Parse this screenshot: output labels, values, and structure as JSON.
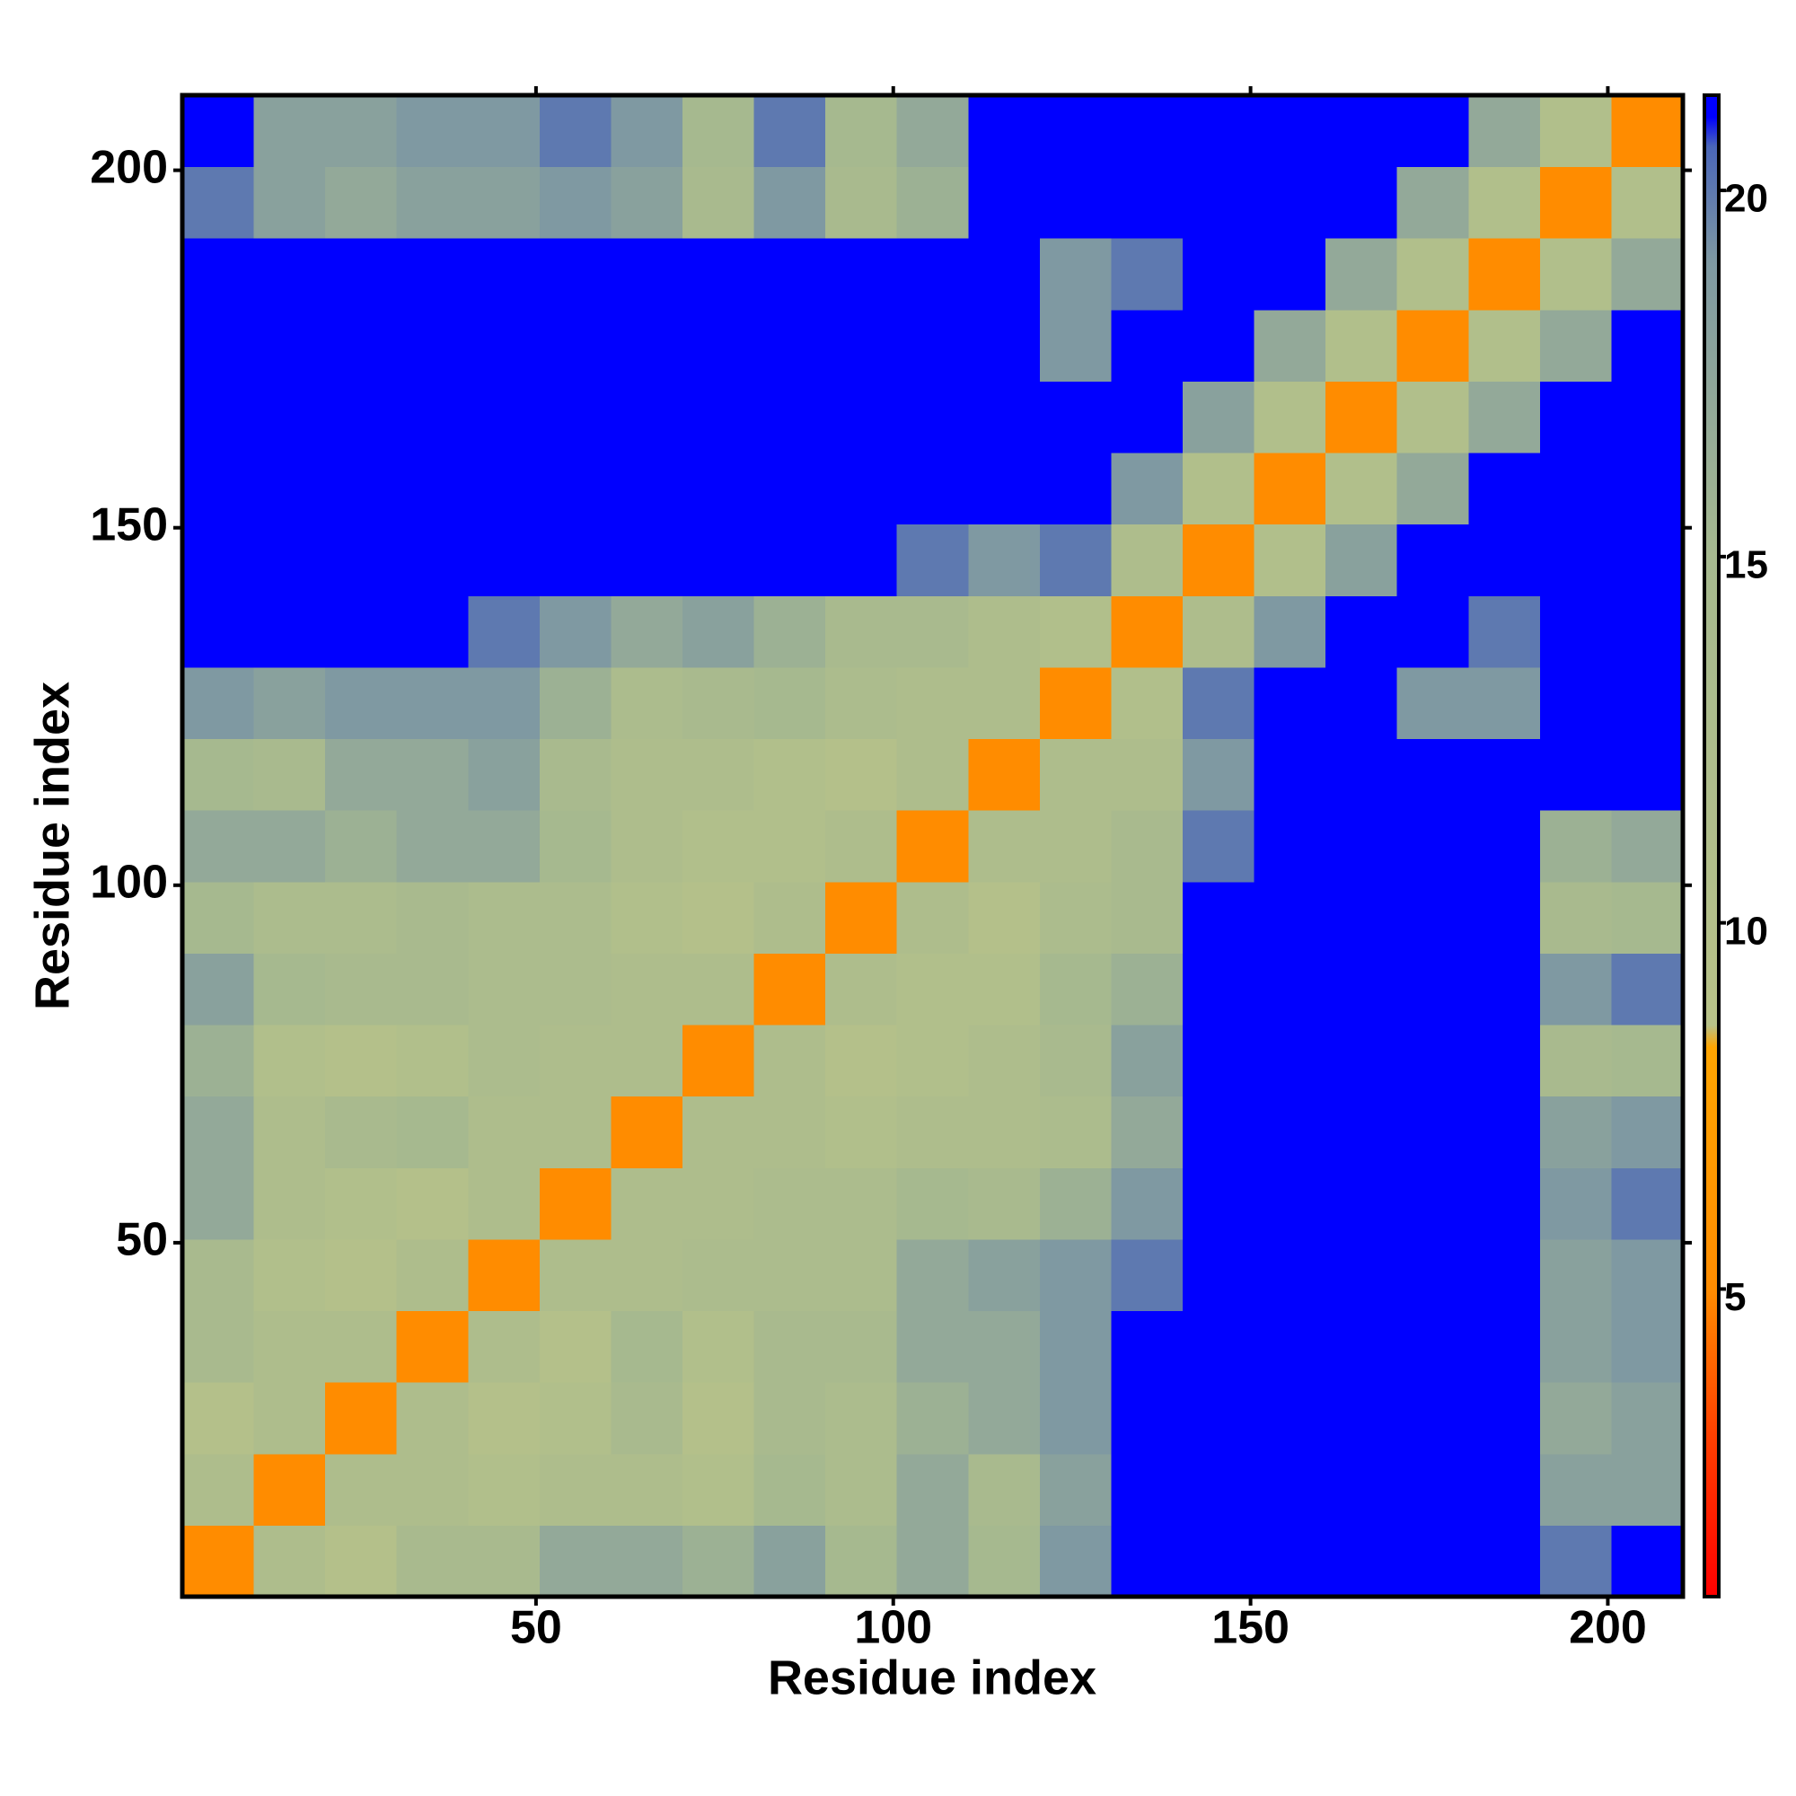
{
  "chart_data": {
    "type": "heatmap",
    "xlabel": "Residue index",
    "ylabel": "Residue index",
    "bins": [
      0.5,
      10.5,
      20.5,
      30.5,
      40.5,
      50.5,
      60.5,
      70.5,
      80.5,
      90.5,
      100.5,
      110.5,
      120.5,
      130.5,
      140.5,
      150.5,
      160.5,
      170.5,
      180.5,
      190.5,
      200.5,
      210.5
    ],
    "values": [
      [
        5,
        12,
        10,
        14,
        14,
        17,
        17,
        16,
        18,
        15,
        17,
        15,
        19,
        21,
        21,
        21,
        21,
        21,
        21,
        20,
        21
      ],
      [
        12,
        5,
        12,
        12,
        11,
        12,
        12,
        11,
        15,
        13,
        17,
        14,
        18,
        21,
        21,
        21,
        21,
        21,
        21,
        18,
        18
      ],
      [
        10,
        12,
        5,
        12,
        10,
        11,
        14,
        10,
        14,
        13,
        16,
        17,
        19,
        21,
        21,
        21,
        21,
        21,
        21,
        17,
        18
      ],
      [
        14,
        12,
        12,
        5,
        12,
        10,
        15,
        11,
        14,
        14,
        17,
        17,
        19,
        21,
        21,
        21,
        21,
        21,
        21,
        18,
        19
      ],
      [
        14,
        11,
        10,
        12,
        5,
        12,
        12,
        13,
        13,
        13,
        17,
        18,
        19,
        20,
        21,
        21,
        21,
        21,
        21,
        18,
        19
      ],
      [
        17,
        12,
        11,
        10,
        12,
        5,
        12,
        12,
        13,
        13,
        15,
        14,
        16,
        19,
        21,
        21,
        21,
        21,
        21,
        19,
        20
      ],
      [
        17,
        12,
        14,
        15,
        12,
        12,
        5,
        12,
        12,
        11,
        12,
        12,
        13,
        17,
        21,
        21,
        21,
        21,
        21,
        18,
        19
      ],
      [
        16,
        11,
        10,
        11,
        13,
        12,
        12,
        5,
        12,
        10,
        11,
        12,
        14,
        18,
        21,
        21,
        21,
        21,
        21,
        14,
        15
      ],
      [
        18,
        15,
        14,
        14,
        13,
        13,
        12,
        12,
        5,
        12,
        11,
        11,
        15,
        16,
        21,
        21,
        21,
        21,
        21,
        19,
        20
      ],
      [
        15,
        13,
        13,
        14,
        13,
        13,
        11,
        10,
        12,
        5,
        12,
        10,
        13,
        14,
        21,
        21,
        21,
        21,
        21,
        14,
        15
      ],
      [
        17,
        17,
        16,
        17,
        17,
        15,
        12,
        11,
        11,
        12,
        5,
        12,
        12,
        14,
        20,
        21,
        21,
        21,
        21,
        16,
        17
      ],
      [
        15,
        14,
        17,
        17,
        18,
        14,
        12,
        12,
        11,
        10,
        12,
        5,
        12,
        12,
        19,
        21,
        21,
        21,
        21,
        21,
        21
      ],
      [
        19,
        18,
        19,
        19,
        19,
        16,
        13,
        14,
        15,
        13,
        12,
        12,
        5,
        11,
        20,
        21,
        21,
        19,
        19,
        21,
        21
      ],
      [
        21,
        21,
        21,
        21,
        20,
        19,
        17,
        18,
        16,
        14,
        14,
        12,
        11,
        5,
        12,
        19,
        21,
        21,
        20,
        21,
        21
      ],
      [
        21,
        21,
        21,
        21,
        21,
        21,
        21,
        21,
        21,
        21,
        20,
        19,
        20,
        12,
        5,
        11,
        18,
        21,
        21,
        21,
        21
      ],
      [
        21,
        21,
        21,
        21,
        21,
        21,
        21,
        21,
        21,
        21,
        21,
        21,
        21,
        19,
        11,
        5,
        11,
        17,
        21,
        21,
        21
      ],
      [
        21,
        21,
        21,
        21,
        21,
        21,
        21,
        21,
        21,
        21,
        21,
        21,
        21,
        21,
        18,
        11,
        5,
        11,
        17,
        21,
        21
      ],
      [
        21,
        21,
        21,
        21,
        21,
        21,
        21,
        21,
        21,
        21,
        21,
        21,
        19,
        21,
        21,
        17,
        11,
        5,
        11,
        17,
        21
      ],
      [
        21,
        21,
        21,
        21,
        21,
        21,
        21,
        21,
        21,
        21,
        21,
        21,
        19,
        20,
        21,
        21,
        17,
        11,
        5,
        11,
        17
      ],
      [
        20,
        18,
        17,
        18,
        18,
        19,
        18,
        14,
        19,
        14,
        16,
        21,
        21,
        21,
        21,
        21,
        21,
        17,
        11,
        5,
        11
      ],
      [
        21,
        18,
        18,
        19,
        19,
        20,
        19,
        15,
        20,
        15,
        17,
        21,
        21,
        21,
        21,
        21,
        21,
        21,
        17,
        11,
        5
      ]
    ],
    "xlim": [
      0.5,
      210.5
    ],
    "ylim": [
      0.5,
      210.5
    ],
    "xticks": [
      50,
      100,
      150,
      200
    ],
    "yticks": [
      50,
      100,
      150,
      200
    ],
    "zlim": [
      0.8,
      21.3
    ],
    "zticks": [
      5,
      10,
      15,
      20
    ],
    "colorscale": [
      [
        0.8,
        "#ff0000"
      ],
      [
        3,
        "#ff4000"
      ],
      [
        5,
        "#ff8c00"
      ],
      [
        8.3,
        "#ffa500"
      ],
      [
        8.6,
        "#b8c288"
      ],
      [
        15,
        "#a6b98f"
      ],
      [
        19,
        "#7f99a2"
      ],
      [
        20.6,
        "#4a66b8"
      ],
      [
        21,
        "#0000ff"
      ]
    ],
    "colorbar": "right"
  }
}
